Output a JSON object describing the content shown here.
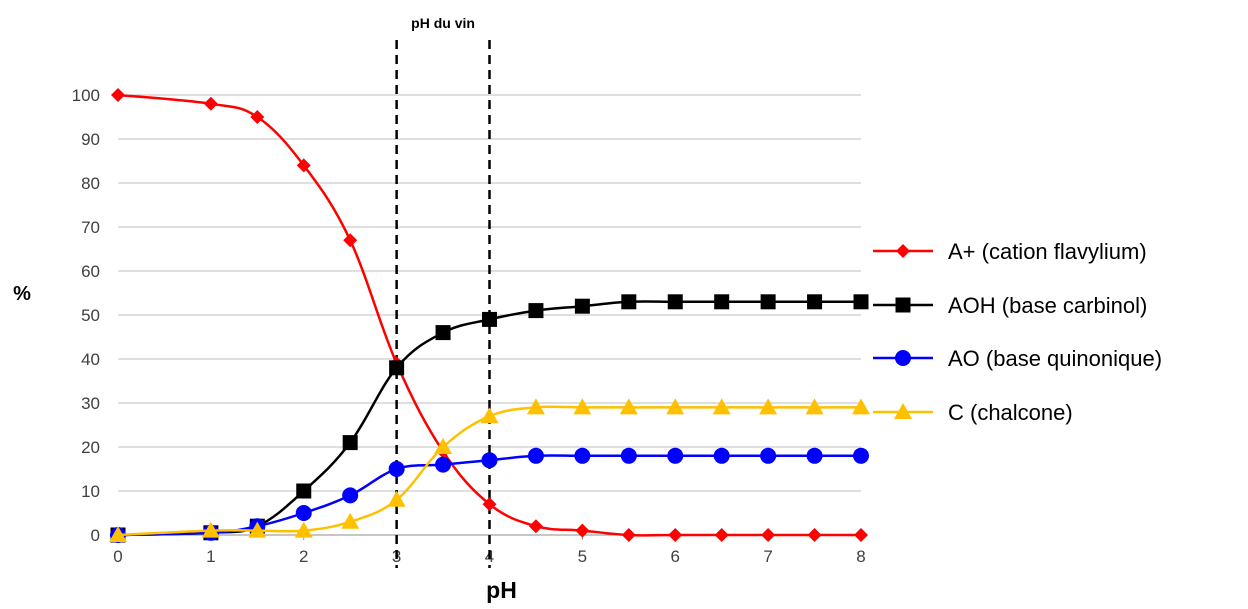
{
  "chart_data": {
    "type": "line",
    "title": "",
    "xlabel": "pH",
    "ylabel": "%",
    "xlim": [
      0,
      8
    ],
    "ylim": [
      0,
      100
    ],
    "x_ticks": [
      0,
      1,
      2,
      3,
      4,
      5,
      6,
      7,
      8
    ],
    "y_ticks": [
      0,
      10,
      20,
      30,
      40,
      50,
      60,
      70,
      80,
      90,
      100
    ],
    "grid": "horizontal",
    "legend_position": "right",
    "annotations": [
      {
        "text": "pH du vin",
        "x_range": [
          3,
          4
        ]
      }
    ],
    "reference_lines_x": [
      3,
      4
    ],
    "x": [
      0,
      1,
      1.5,
      2,
      2.5,
      3,
      3.5,
      4,
      4.5,
      5,
      5.5,
      6,
      6.5,
      7,
      7.5,
      8
    ],
    "series": [
      {
        "name": "A+ (cation flavylium)",
        "color": "#ff0000",
        "marker": "diamond",
        "values": [
          100,
          98,
          95,
          84,
          67,
          39,
          19,
          7,
          2,
          1,
          0,
          0,
          0,
          0,
          0,
          0
        ]
      },
      {
        "name": "AOH (base carbinol)",
        "color": "#000000",
        "marker": "square",
        "values": [
          0,
          0.5,
          2,
          10,
          21,
          38,
          46,
          49,
          51,
          52,
          53,
          53,
          53,
          53,
          53,
          53
        ]
      },
      {
        "name": "AO (base quinonique)",
        "color": "#0000ff",
        "marker": "circle",
        "values": [
          0,
          0.5,
          2,
          5,
          9,
          15,
          16,
          17,
          18,
          18,
          18,
          18,
          18,
          18,
          18,
          18
        ]
      },
      {
        "name": "C (chalcone)",
        "color": "#ffc000",
        "marker": "triangle",
        "values": [
          0,
          1,
          1,
          1,
          3,
          8,
          20,
          27,
          29,
          29,
          29,
          29,
          29,
          29,
          29,
          29
        ]
      }
    ]
  }
}
